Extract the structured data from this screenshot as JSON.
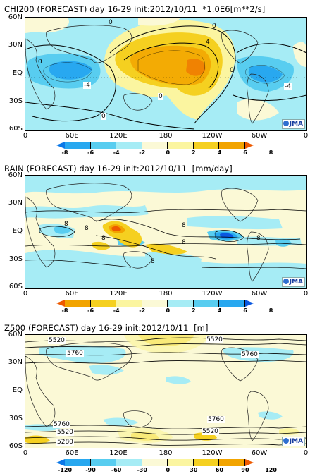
{
  "panels": [
    {
      "title": "CHI200 (FORECAST) day 16-29 init:2012/10/11  *1.0E6[m**2/s]",
      "lat_labels": [
        "60N",
        "30N",
        "EQ",
        "30S",
        "60S"
      ],
      "lon_labels": [
        "0",
        "60E",
        "120E",
        "180",
        "120W",
        "60W",
        "0"
      ],
      "colorbar": {
        "colors": [
          "#0a78e8",
          "#28a8f0",
          "#58cdf0",
          "#a6ecf5",
          "#fbf9d6",
          "#fbf5a0",
          "#f5d020",
          "#f2a400",
          "#ee5a00"
        ],
        "labels": [
          "-8",
          "-6",
          "-4",
          "-2",
          "0",
          "2",
          "4",
          "6",
          "8"
        ]
      },
      "contour_labels": [
        "0",
        "0",
        "-4",
        "0",
        "0",
        "-4",
        "0",
        "4",
        "0"
      ],
      "logo": "JMA"
    },
    {
      "title": "RAIN (FORECAST) day 16-29 init:2012/10/11  [mm/day]",
      "lat_labels": [
        "60N",
        "30N",
        "EQ",
        "30S",
        "60S"
      ],
      "lon_labels": [
        "0",
        "60E",
        "120E",
        "180",
        "120W",
        "60W",
        "0"
      ],
      "colorbar": {
        "colors": [
          "#ee5a00",
          "#f2a400",
          "#f5d020",
          "#fbf5a0",
          "#fbf9d6",
          "#a6ecf5",
          "#58cdf0",
          "#28a8f0",
          "#0a58e0"
        ],
        "labels": [
          "-8",
          "-6",
          "-4",
          "-2",
          "0",
          "2",
          "4",
          "6",
          "8"
        ]
      },
      "contour_labels": [
        "8",
        "8",
        "8",
        "8",
        "8",
        "8",
        "8"
      ],
      "logo": "JMA"
    },
    {
      "title": "Z500 (FORECAST) day 16-29 init:2012/10/11  [m]",
      "lat_labels": [
        "60N",
        "30N",
        "EQ",
        "30S",
        "60S"
      ],
      "lon_labels": [
        "0",
        "60E",
        "120E",
        "180",
        "120W",
        "60W",
        "0"
      ],
      "colorbar": {
        "colors": [
          "#0a78e8",
          "#28a8f0",
          "#58cdf0",
          "#a6ecf5",
          "#fbf9d6",
          "#fbf5a0",
          "#f5d020",
          "#f2a400",
          "#ee5a00"
        ],
        "labels": [
          "-120",
          "-90",
          "-60",
          "-30",
          "0",
          "30",
          "60",
          "90",
          "120"
        ]
      },
      "contour_labels": [
        "5520",
        "5520",
        "5760",
        "5760",
        "5760",
        "5760",
        "5520",
        "5280",
        "5520"
      ],
      "logo": "JMA"
    }
  ]
}
